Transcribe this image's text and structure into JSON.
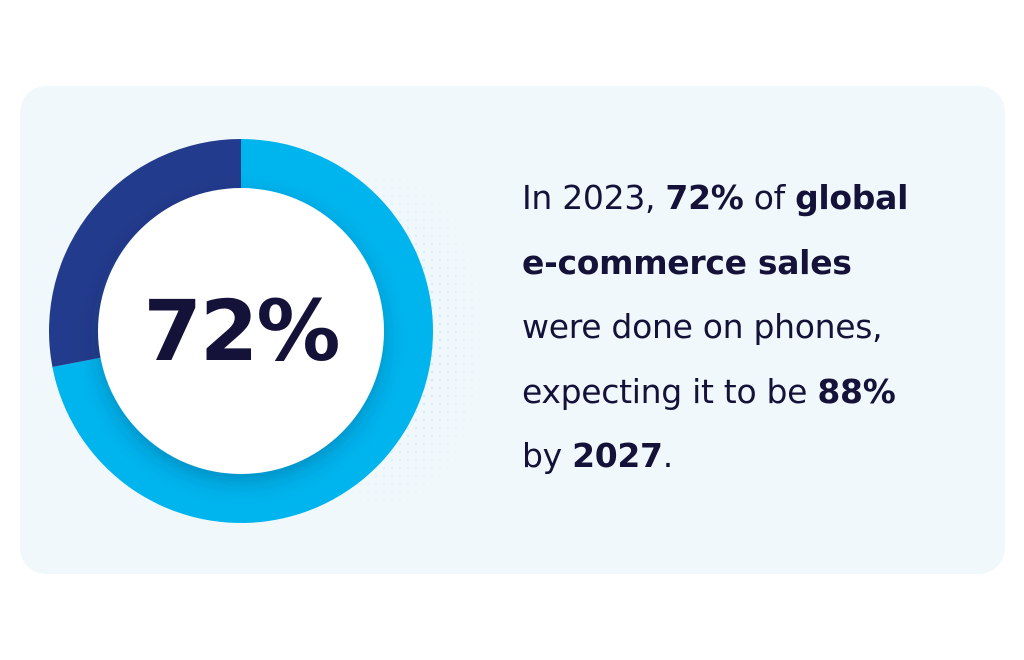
{
  "colors": {
    "card_background": "#f1f8fc",
    "highlight": "#00b4ed",
    "remainder": "#233b8c",
    "center": "#ffffff",
    "text": "#141238"
  },
  "chart_data": {
    "type": "pie",
    "style": "donut",
    "center_label": "72%",
    "slices": [
      {
        "value": 72,
        "color": "#00b4ed"
      },
      {
        "value": 28,
        "color": "#233b8c"
      }
    ],
    "start_position": "top",
    "direction": "clockwise"
  },
  "statement": {
    "line1": {
      "prefix": "In 2023, ",
      "percent": "72%",
      "middle": " of ",
      "emph": "global"
    },
    "line2": {
      "emph": "e-commerce sales"
    },
    "line3": {
      "text": "were done on phones,"
    },
    "line4": {
      "prefix": "expecting it to be ",
      "emph": "88%"
    },
    "line5": {
      "prefix": "by ",
      "emph": "2027",
      "suffix": "."
    }
  }
}
